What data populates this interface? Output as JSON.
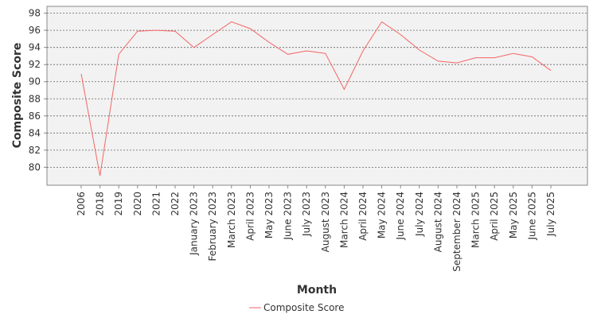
{
  "chart_data": {
    "type": "line",
    "title": "",
    "xlabel": "Month",
    "ylabel": "Composite Score",
    "categories": [
      "2006",
      "2018",
      "2019",
      "2020",
      "2021",
      "2022",
      "January 2023",
      "February 2023",
      "March 2023",
      "April 2023",
      "May 2023",
      "June 2023",
      "July 2023",
      "August 2023",
      "March 2024",
      "April 2024",
      "May 2024",
      "June 2024",
      "July 2024",
      "August 2024",
      "September 2024",
      "March 2025",
      "April 2025",
      "May 2025",
      "June 2025",
      "July 2025"
    ],
    "series": [
      {
        "name": "Composite Score",
        "color": "#f46565",
        "values": [
          90.9,
          79.0,
          93.2,
          95.9,
          96.0,
          95.9,
          94.0,
          95.5,
          97.0,
          96.2,
          94.6,
          93.2,
          93.6,
          93.3,
          89.1,
          93.6,
          97.0,
          95.5,
          93.7,
          92.4,
          92.2,
          92.8,
          92.8,
          93.3,
          92.9,
          91.3
        ]
      }
    ],
    "y_ticks": [
      80,
      82,
      84,
      86,
      88,
      90,
      92,
      94,
      96,
      98
    ],
    "ylim": [
      77.9,
      98.8
    ],
    "grid": true,
    "legend_position": "bottom"
  }
}
